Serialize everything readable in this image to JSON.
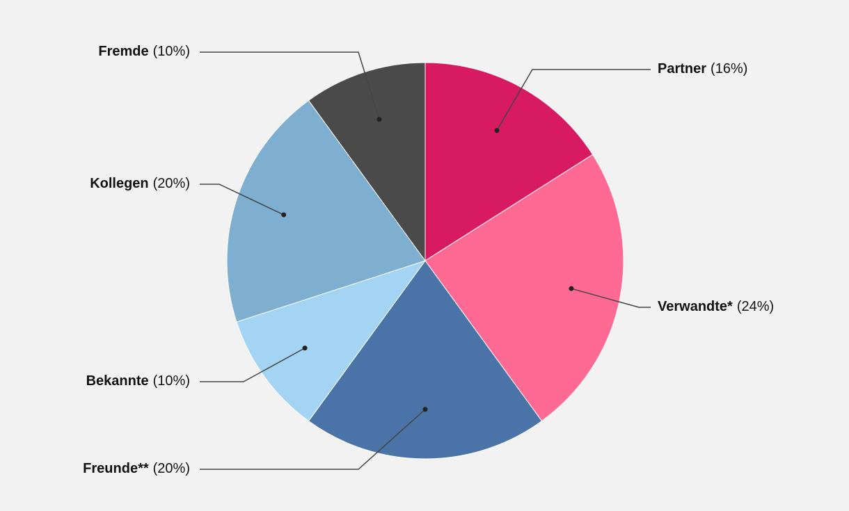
{
  "chart_data": {
    "type": "pie",
    "categories": [
      "Partner",
      "Verwandte*",
      "Freunde**",
      "Bekannte",
      "Kollegen",
      "Fremde"
    ],
    "values": [
      16,
      24,
      20,
      10,
      20,
      10
    ],
    "value_labels": [
      "(16%)",
      "(24%)",
      "(20%)",
      "(10%)",
      "(20%)",
      "(10%)"
    ],
    "colors": [
      "#d81b60",
      "#ff6a94",
      "#4a74a8",
      "#a3d4f4",
      "#7fafd0",
      "#4a4a4a"
    ]
  }
}
